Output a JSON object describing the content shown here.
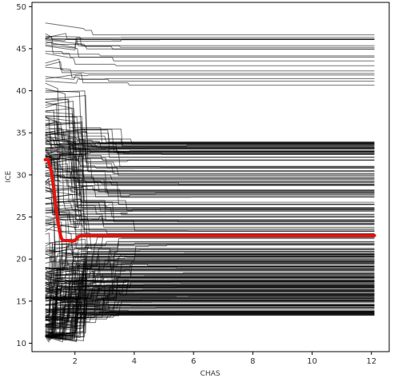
{
  "chart_data": {
    "type": "line",
    "xlabel": "CHAS",
    "ylabel": "ICE",
    "xlim": [
      0.55,
      12.6
    ],
    "ylim": [
      9.0,
      50.5
    ],
    "x_ticks": [
      2,
      4,
      6,
      8,
      10,
      12
    ],
    "y_ticks": [
      10,
      15,
      20,
      25,
      30,
      35,
      40,
      45,
      50
    ],
    "grid": false,
    "legend": "none",
    "colors": {
      "ice_lines": "#000000",
      "average_line": "#e8120c"
    },
    "series": [
      {
        "role": "average",
        "x": [
          1.0,
          1.1,
          1.2,
          1.3,
          1.4,
          1.5,
          1.55,
          1.6,
          1.7,
          1.8,
          1.9,
          2.0,
          2.1,
          2.2,
          2.5,
          3.0,
          4.0,
          6.0,
          8.0,
          10.0,
          12.1
        ],
        "y": [
          31.8,
          31.8,
          30.5,
          28.0,
          25.0,
          23.0,
          22.4,
          22.2,
          22.2,
          22.2,
          22.1,
          22.2,
          22.6,
          22.8,
          22.8,
          22.8,
          22.8,
          22.8,
          22.8,
          22.8,
          22.8
        ]
      }
    ],
    "ice_curves": {
      "count": 320,
      "x_start": 1.0,
      "x_end": 12.1,
      "start_values": [
        48.5,
        48.0,
        47.5,
        47.0,
        46.5,
        46.0,
        45.5,
        45.0,
        44.5,
        44.0,
        43.5,
        43.0,
        42.5,
        42.0,
        41.5,
        41.0,
        40.5,
        40.0,
        39.0,
        38.0,
        37.0,
        36.5,
        36.0,
        35.5,
        35.0,
        34.5,
        34.0,
        33.5,
        33.0,
        32.5,
        32.0,
        31.5,
        31.0,
        30.5,
        30.0,
        29.0,
        28.5,
        28.0,
        27.5,
        27.0,
        26.5,
        26.0,
        25.5,
        25.0,
        24.5,
        24.0,
        23.5,
        23.0,
        22.5,
        22.0,
        21.5,
        21.0,
        20.5,
        20.0,
        19.5,
        19.0,
        18.5,
        18.0,
        17.5,
        17.0,
        16.5,
        16.0,
        15.5,
        15.0,
        14.5,
        14.0,
        13.5,
        13.0,
        12.5,
        12.0,
        11.5,
        11.0,
        10.8
      ],
      "end_values_upper": [
        46.5,
        46.2,
        45.9,
        45.6,
        45.3,
        45.0,
        44.8,
        44.3,
        43.9,
        43.5,
        43.0,
        42.5,
        42.0,
        41.5,
        40.6
      ],
      "end_values_middle": [
        33.8,
        33.5,
        33.2,
        32.8,
        32.5,
        32.1,
        31.8,
        31.3,
        30.9,
        30.4,
        30.0,
        29.6,
        29.2,
        28.8,
        28.3,
        27.9,
        27.5,
        27.0,
        26.6,
        26.2,
        25.8,
        25.4,
        25.0,
        24.6,
        24.2,
        23.8,
        23.4,
        23.0,
        22.6,
        22.2,
        21.8,
        21.4,
        21.0,
        20.6
      ],
      "end_values_lower": [
        20.2,
        19.8,
        19.4,
        19.0,
        18.6,
        18.2,
        17.8,
        17.4,
        17.0,
        16.6,
        16.2,
        15.8,
        15.4,
        15.0,
        14.6,
        14.2,
        13.8,
        13.5
      ]
    }
  }
}
